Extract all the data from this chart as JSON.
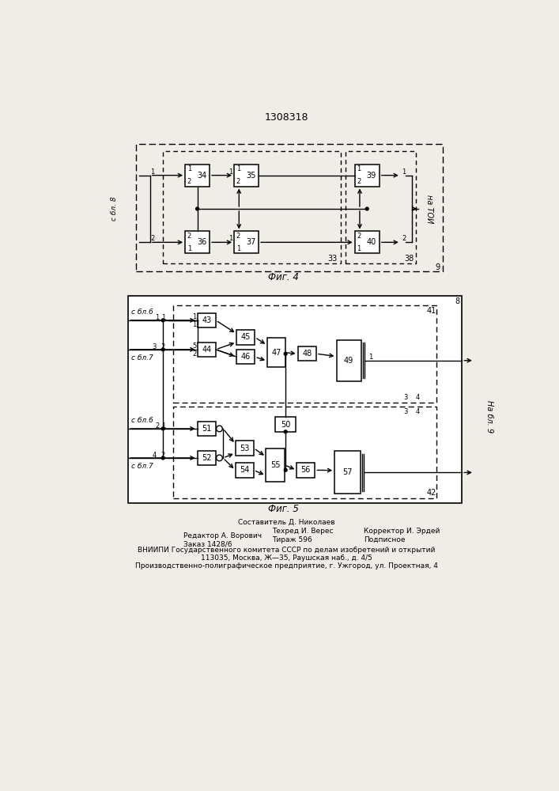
{
  "title": "1308318",
  "fig4_label": "Фиг. 4",
  "fig5_label": "Фиг. 5",
  "bg_color": "#f0ede8",
  "footer_lines": [
    "Составитель Д. Николаев",
    "Редактор А. Ворович",
    "Техред И. Верес",
    "Корректор И. Эрдей",
    "Заказ 1428/6",
    "Тираж 596",
    "Подписное",
    "ВНИИПИ Государственного комитета СССР по делам изобретений и открытий",
    "113035, Москва, Ж—35, Раушская наб., д. 4/5",
    "Производственно-полиграфическое предприятие, г. Ужгород, ул. Проектная, 4"
  ]
}
